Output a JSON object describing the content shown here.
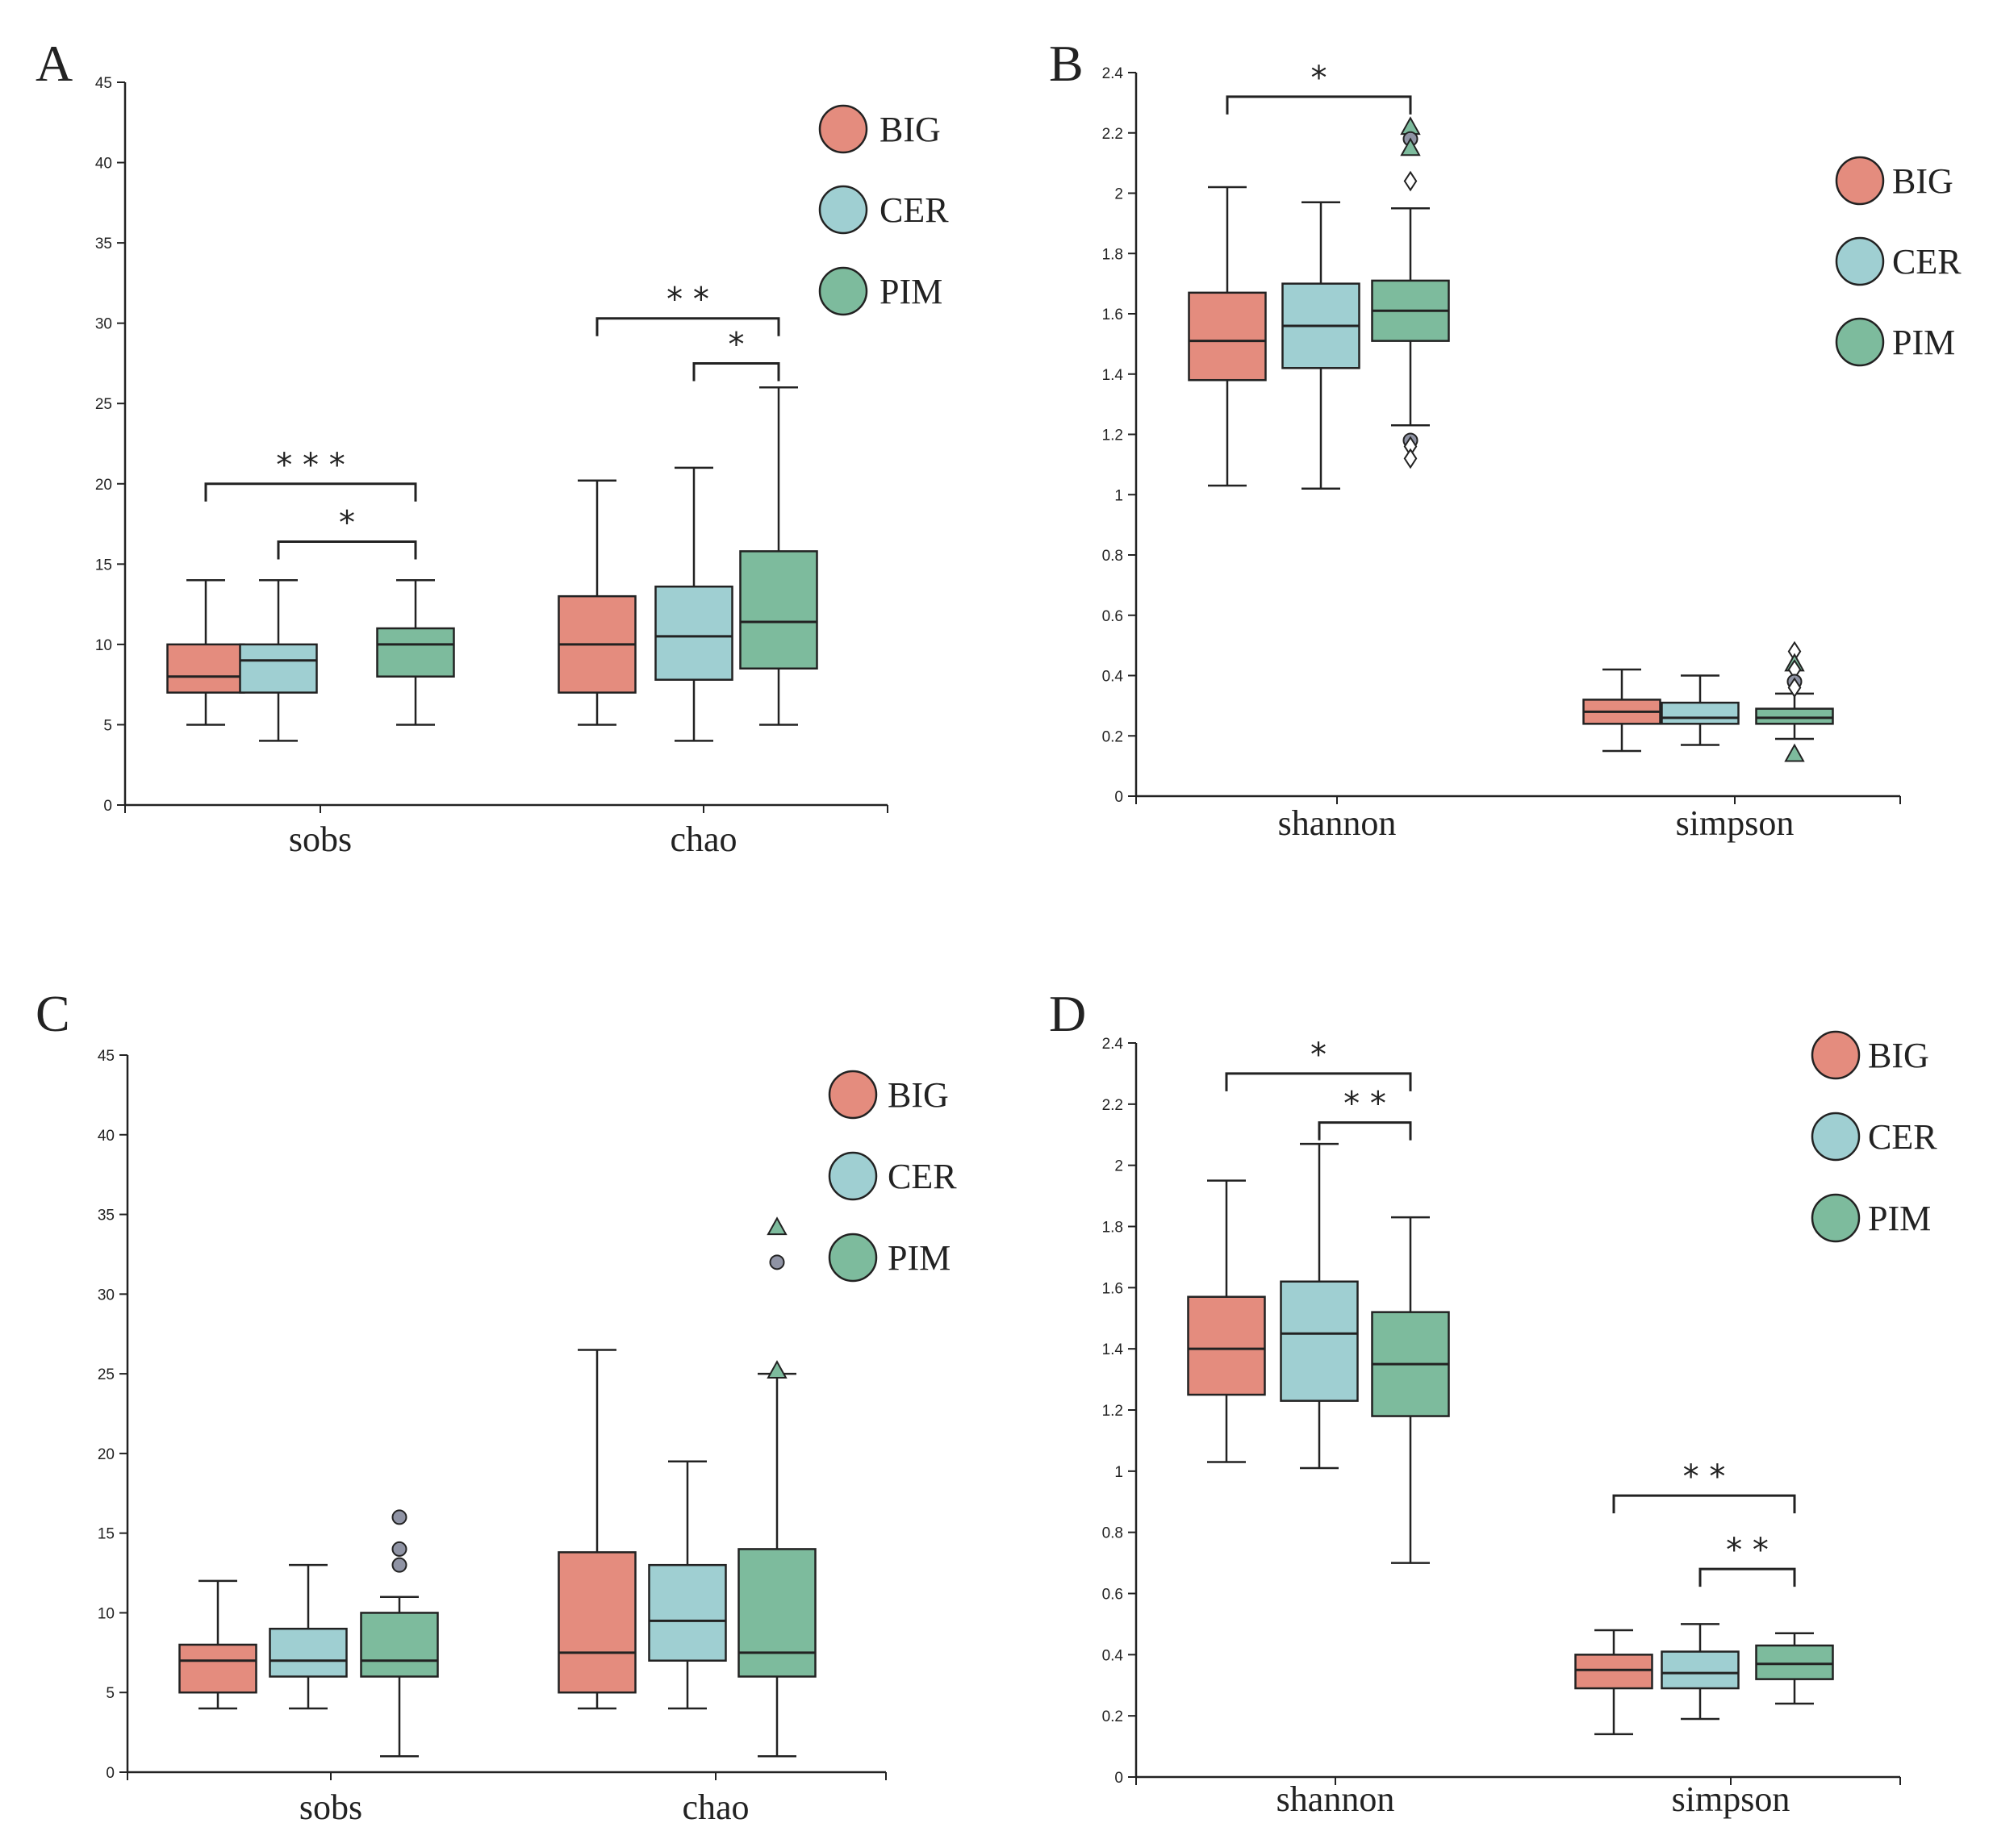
{
  "colors": {
    "BIG": "#e48c7e",
    "CER": "#9fcfd2",
    "PIM": "#7dbb9d",
    "outlier_dot": "#8f93a4",
    "line": "#222222"
  },
  "chart_data": [
    {
      "type": "box",
      "panel": "A",
      "ylim": [
        0,
        45
      ],
      "yticks": [
        "0",
        "5",
        "10",
        "15",
        "20",
        "25",
        "30",
        "35",
        "40",
        "45"
      ],
      "categories": [
        "sobs",
        "chao"
      ],
      "legend": [
        "BIG",
        "CER",
        "PIM"
      ],
      "groups": [
        {
          "category": "sobs",
          "boxes": [
            {
              "series": "BIG",
              "min": 5,
              "q1": 7,
              "median": 8,
              "q3": 10,
              "max": 14
            },
            {
              "series": "CER",
              "min": 4,
              "q1": 7,
              "median": 9,
              "q3": 10,
              "max": 14
            },
            {
              "series": "PIM",
              "min": 5,
              "q1": 8,
              "median": 10,
              "q3": 11,
              "max": 14
            }
          ]
        },
        {
          "category": "chao",
          "boxes": [
            {
              "series": "BIG",
              "min": 5,
              "q1": 7,
              "median": 10,
              "q3": 13,
              "max": 20.2
            },
            {
              "series": "CER",
              "min": 4,
              "q1": 7.8,
              "median": 10.5,
              "q3": 13.6,
              "max": 21
            },
            {
              "series": "PIM",
              "min": 5,
              "q1": 8.5,
              "median": 11.4,
              "q3": 15.8,
              "max": 26
            }
          ]
        }
      ],
      "outliers": [],
      "significance": [
        {
          "group": 0,
          "from": 0,
          "to": 2,
          "y": 20,
          "label": "* * *"
        },
        {
          "group": 0,
          "from": 1,
          "to": 2,
          "y": 16.4,
          "label": "*"
        },
        {
          "group": 1,
          "from": 0,
          "to": 2,
          "y": 30.3,
          "label": "* *"
        },
        {
          "group": 1,
          "from": 1,
          "to": 2,
          "y": 27.5,
          "label": "*"
        }
      ]
    },
    {
      "type": "box",
      "panel": "B",
      "ylim": [
        0,
        2.4
      ],
      "yticks": [
        "0",
        "0.2",
        "0.4",
        "0.6",
        "0.8",
        "1",
        "1.2",
        "1.4",
        "1.6",
        "1.8",
        "2",
        "2.2",
        "2.4"
      ],
      "categories": [
        "shannon",
        "simpson"
      ],
      "legend": [
        "BIG",
        "CER",
        "PIM"
      ],
      "groups": [
        {
          "category": "shannon",
          "boxes": [
            {
              "series": "BIG",
              "min": 1.03,
              "q1": 1.38,
              "median": 1.51,
              "q3": 1.67,
              "max": 2.02
            },
            {
              "series": "CER",
              "min": 1.02,
              "q1": 1.42,
              "median": 1.56,
              "q3": 1.7,
              "max": 1.97
            },
            {
              "series": "PIM",
              "min": 1.23,
              "q1": 1.51,
              "median": 1.61,
              "q3": 1.71,
              "max": 1.95
            }
          ]
        },
        {
          "category": "simpson",
          "boxes": [
            {
              "series": "BIG",
              "min": 0.15,
              "q1": 0.24,
              "median": 0.28,
              "q3": 0.32,
              "max": 0.42
            },
            {
              "series": "CER",
              "min": 0.17,
              "q1": 0.24,
              "median": 0.26,
              "q3": 0.31,
              "max": 0.4
            },
            {
              "series": "PIM",
              "min": 0.19,
              "q1": 0.24,
              "median": 0.26,
              "q3": 0.29,
              "max": 0.34
            }
          ]
        }
      ],
      "outliers": [
        {
          "group": 0,
          "box": 2,
          "value": 2.22,
          "marker": "triangle"
        },
        {
          "group": 0,
          "box": 2,
          "value": 2.18,
          "marker": "circle"
        },
        {
          "group": 0,
          "box": 2,
          "value": 2.15,
          "marker": "triangle"
        },
        {
          "group": 0,
          "box": 2,
          "value": 2.04,
          "marker": "diamond"
        },
        {
          "group": 0,
          "box": 2,
          "value": 1.18,
          "marker": "circle"
        },
        {
          "group": 0,
          "box": 2,
          "value": 1.16,
          "marker": "diamond"
        },
        {
          "group": 0,
          "box": 2,
          "value": 1.12,
          "marker": "diamond"
        },
        {
          "group": 1,
          "box": 2,
          "value": 0.48,
          "marker": "diamond"
        },
        {
          "group": 1,
          "box": 2,
          "value": 0.44,
          "marker": "triangle"
        },
        {
          "group": 1,
          "box": 2,
          "value": 0.42,
          "marker": "diamond"
        },
        {
          "group": 1,
          "box": 2,
          "value": 0.38,
          "marker": "circle"
        },
        {
          "group": 1,
          "box": 2,
          "value": 0.36,
          "marker": "diamond"
        },
        {
          "group": 1,
          "box": 2,
          "value": 0.14,
          "marker": "triangle"
        }
      ],
      "significance": [
        {
          "group": 0,
          "from": 0,
          "to": 2,
          "y": 2.32,
          "label": "*"
        }
      ]
    },
    {
      "type": "box",
      "panel": "C",
      "ylim": [
        0,
        45
      ],
      "yticks": [
        "0",
        "5",
        "10",
        "15",
        "20",
        "25",
        "30",
        "35",
        "40",
        "45"
      ],
      "categories": [
        "sobs",
        "chao"
      ],
      "legend": [
        "BIG",
        "CER",
        "PIM"
      ],
      "groups": [
        {
          "category": "sobs",
          "boxes": [
            {
              "series": "BIG",
              "min": 4,
              "q1": 5,
              "median": 7,
              "q3": 8,
              "max": 12
            },
            {
              "series": "CER",
              "min": 4,
              "q1": 6,
              "median": 7,
              "q3": 9,
              "max": 13
            },
            {
              "series": "PIM",
              "min": 1,
              "q1": 6,
              "median": 7,
              "q3": 10,
              "max": 11
            }
          ]
        },
        {
          "category": "chao",
          "boxes": [
            {
              "series": "BIG",
              "min": 4,
              "q1": 5,
              "median": 7.5,
              "q3": 13.8,
              "max": 26.5
            },
            {
              "series": "CER",
              "min": 4,
              "q1": 7,
              "median": 9.5,
              "q3": 13,
              "max": 19.5
            },
            {
              "series": "PIM",
              "min": 1,
              "q1": 6,
              "median": 7.5,
              "q3": 14,
              "max": 25
            }
          ]
        }
      ],
      "outliers": [
        {
          "group": 0,
          "box": 2,
          "value": 16,
          "marker": "circle"
        },
        {
          "group": 0,
          "box": 2,
          "value": 14,
          "marker": "circle"
        },
        {
          "group": 0,
          "box": 2,
          "value": 13,
          "marker": "circle"
        },
        {
          "group": 1,
          "box": 2,
          "value": 34.2,
          "marker": "triangle"
        },
        {
          "group": 1,
          "box": 2,
          "value": 32,
          "marker": "circle"
        },
        {
          "group": 1,
          "box": 2,
          "value": 25.2,
          "marker": "triangle"
        }
      ],
      "significance": []
    },
    {
      "type": "box",
      "panel": "D",
      "ylim": [
        0,
        2.4
      ],
      "yticks": [
        "0",
        "0.2",
        "0.4",
        "0.6",
        "0.8",
        "1",
        "1.2",
        "1.4",
        "1.6",
        "1.8",
        "2",
        "2.2",
        "2.4"
      ],
      "categories": [
        "shannon",
        "simpson"
      ],
      "legend": [
        "BIG",
        "CER",
        "PIM"
      ],
      "groups": [
        {
          "category": "shannon",
          "boxes": [
            {
              "series": "BIG",
              "min": 1.03,
              "q1": 1.25,
              "median": 1.4,
              "q3": 1.57,
              "max": 1.95
            },
            {
              "series": "CER",
              "min": 1.01,
              "q1": 1.23,
              "median": 1.45,
              "q3": 1.62,
              "max": 2.07
            },
            {
              "series": "PIM",
              "min": 0.7,
              "q1": 1.18,
              "median": 1.35,
              "q3": 1.52,
              "max": 1.83
            }
          ]
        },
        {
          "category": "simpson",
          "boxes": [
            {
              "series": "BIG",
              "min": 0.14,
              "q1": 0.29,
              "median": 0.35,
              "q3": 0.4,
              "max": 0.48
            },
            {
              "series": "CER",
              "min": 0.19,
              "q1": 0.29,
              "median": 0.34,
              "q3": 0.41,
              "max": 0.5
            },
            {
              "series": "PIM",
              "min": 0.24,
              "q1": 0.32,
              "median": 0.37,
              "q3": 0.43,
              "max": 0.47
            }
          ]
        }
      ],
      "outliers": [],
      "significance": [
        {
          "group": 0,
          "from": 0,
          "to": 2,
          "y": 2.3,
          "label": "*"
        },
        {
          "group": 0,
          "from": 1,
          "to": 2,
          "y": 2.14,
          "label": "* *"
        },
        {
          "group": 1,
          "from": 0,
          "to": 2,
          "y": 0.92,
          "label": "* *"
        },
        {
          "group": 1,
          "from": 1,
          "to": 2,
          "y": 0.68,
          "label": "* *"
        }
      ]
    }
  ]
}
